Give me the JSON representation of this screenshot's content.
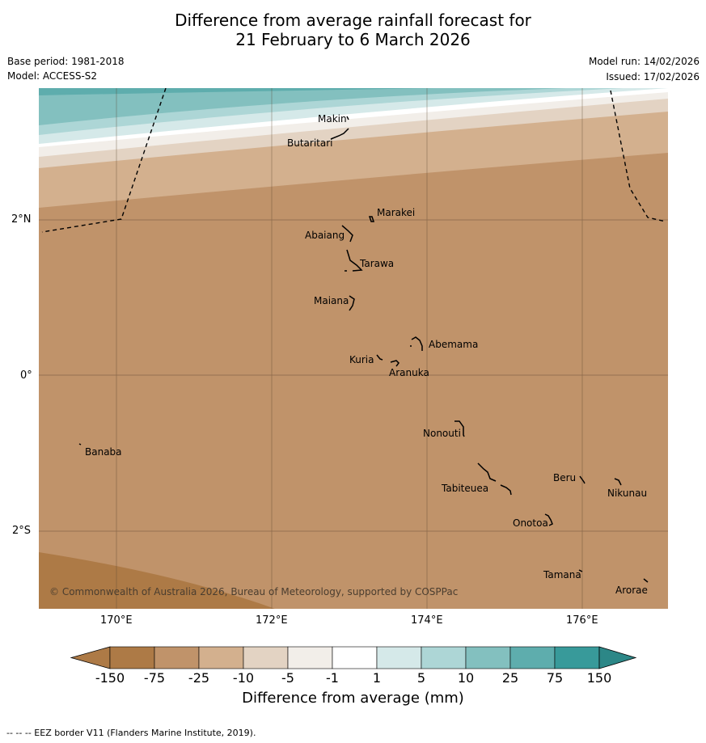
{
  "title": {
    "line1": "Difference from average rainfall forecast for",
    "line2": "21 February to 6 March 2026"
  },
  "meta": {
    "base_period": "Base period: 1981-2018",
    "model": "Model: ACCESS-S2",
    "model_run": "Model run: 14/02/2026",
    "issued": "Issued: 17/02/2026"
  },
  "map": {
    "lat_labels": [
      "2°N",
      "0°",
      "2°S"
    ],
    "lon_labels": [
      "170°E",
      "172°E",
      "174°E",
      "176°E"
    ],
    "copyright": "© Commonwealth of Australia 2026, Bureau of Meteorology, supported by COSPPac",
    "islands": [
      {
        "name": "Makin"
      },
      {
        "name": "Butaritari"
      },
      {
        "name": "Marakei"
      },
      {
        "name": "Abaiang"
      },
      {
        "name": "Tarawa"
      },
      {
        "name": "Maiana"
      },
      {
        "name": "Abemama"
      },
      {
        "name": "Kuria"
      },
      {
        "name": "Aranuka"
      },
      {
        "name": "Nonouti"
      },
      {
        "name": "Banaba"
      },
      {
        "name": "Tabiteuea"
      },
      {
        "name": "Beru"
      },
      {
        "name": "Nikunau"
      },
      {
        "name": "Onotoa"
      },
      {
        "name": "Tamana"
      },
      {
        "name": "Arorae"
      }
    ]
  },
  "colorbar": {
    "labels": [
      "-150",
      "-75",
      "-25",
      "-10",
      "-5",
      "-1",
      "1",
      "5",
      "10",
      "25",
      "75",
      "150"
    ],
    "colors": [
      "#ad7a46",
      "#c0936a",
      "#d3b08e",
      "#e3d3c3",
      "#f2eee9",
      "#ffffff",
      "#d5e9e9",
      "#add6d6",
      "#83c0bf",
      "#5eadad",
      "#389a9a",
      "#2c8787"
    ],
    "title": "Difference from average (mm)"
  },
  "footnote": "--  --  -- EEZ border V11 (Flanders Marine Institute, 2019)."
}
